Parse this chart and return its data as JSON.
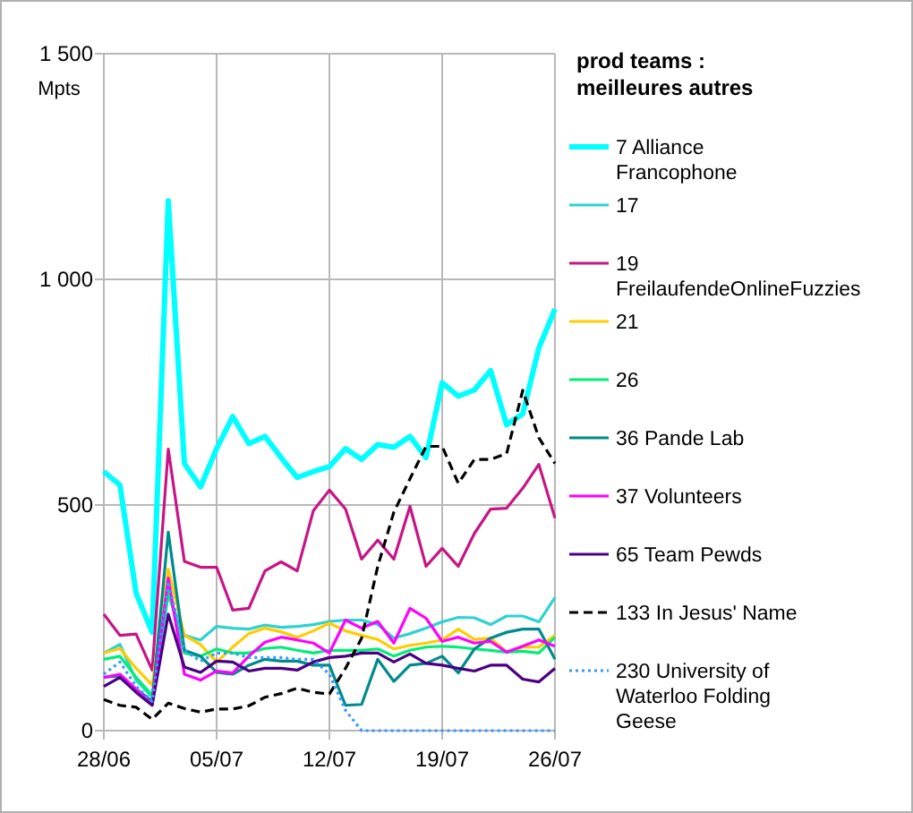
{
  "chart_data": {
    "type": "line",
    "ylabel": "Mpts",
    "legend_title": "prod teams : meilleures autres",
    "legend": "right",
    "grid": true,
    "marker": "none",
    "line_style": "solid",
    "x": [
      "--06-28",
      "--06-29",
      "--06-30",
      "--07-01",
      "--07-02",
      "--07-03",
      "--07-04",
      "--07-05",
      "--07-06",
      "--07-07",
      "--07-08",
      "--07-09",
      "--07-10",
      "--07-11",
      "--07-12",
      "--07-13",
      "--07-14",
      "--07-15",
      "--07-16",
      "--07-17",
      "--07-18",
      "--07-19",
      "--07-20",
      "--07-21",
      "--07-22",
      "--07-23",
      "--07-24",
      "--07-25",
      "--07-26"
    ],
    "xlim": [
      "--06-28",
      "--07-26"
    ],
    "xticks": [
      {
        "value": "--06-28",
        "label": "28/06"
      },
      {
        "value": "--07-05",
        "label": "05/07"
      },
      {
        "value": "--07-12",
        "label": "12/07"
      },
      {
        "value": "--07-19",
        "label": "19/07"
      },
      {
        "value": "--07-26",
        "label": "26/07"
      }
    ],
    "ylim": [
      0,
      1500
    ],
    "yticks": [
      0,
      500,
      {
        "value": 1000,
        "label": "1 000"
      },
      {
        "value": 1500,
        "label": "1 500"
      }
    ],
    "series": [
      {
        "name": "7 Alliance Francophone",
        "color": "#00ffff",
        "values": [
          574,
          544,
          305,
          218,
          1174,
          592,
          540,
          625,
          696,
          636,
          652,
          605,
          561,
          574,
          585,
          625,
          601,
          634,
          628,
          652,
          605,
          771,
          741,
          755,
          798,
          678,
          702,
          848,
          934
        ]
      },
      {
        "name": "17",
        "color": "#2ed2d2",
        "values": [
          172,
          191,
          112,
          74,
          300,
          211,
          201,
          231,
          227,
          225,
          234,
          229,
          231,
          235,
          242,
          245,
          245,
          235,
          205,
          215,
          227,
          241,
          251,
          250,
          235,
          254,
          254,
          241,
          295
        ]
      },
      {
        "name": "19 FreilaufendeOnlineFuzzies",
        "color": "#c71585",
        "values": [
          258,
          211,
          214,
          134,
          624,
          375,
          362,
          362,
          267,
          271,
          354,
          374,
          354,
          487,
          533,
          491,
          380,
          422,
          380,
          497,
          364,
          404,
          364,
          437,
          491,
          493,
          537,
          590,
          471
        ]
      },
      {
        "name": "21",
        "color": "#ffcc00",
        "values": [
          172,
          182,
          138,
          101,
          358,
          211,
          191,
          152,
          185,
          215,
          227,
          219,
          207,
          221,
          238,
          221,
          211,
          202,
          181,
          189,
          194,
          201,
          225,
          202,
          205,
          174,
          185,
          185,
          211
        ]
      },
      {
        "name": "26",
        "color": "#00ee77",
        "values": [
          158,
          165,
          118,
          78,
          311,
          172,
          165,
          181,
          172,
          172,
          182,
          185,
          178,
          172,
          178,
          178,
          178,
          181,
          165,
          178,
          185,
          187,
          185,
          181,
          178,
          174,
          176,
          172,
          207
        ]
      },
      {
        "name": "36 Pande Lab",
        "color": "#008b8b",
        "values": [
          118,
          121,
          92,
          65,
          440,
          178,
          165,
          129,
          125,
          145,
          158,
          154,
          154,
          145,
          145,
          56,
          58,
          158,
          109,
          145,
          149,
          165,
          128,
          181,
          205,
          218,
          225,
          225,
          158
        ]
      },
      {
        "name": "37 Volunteers",
        "color": "#ff00ff",
        "values": [
          118,
          125,
          92,
          58,
          338,
          125,
          112,
          132,
          128,
          165,
          196,
          207,
          201,
          194,
          172,
          245,
          227,
          242,
          194,
          271,
          249,
          198,
          207,
          194,
          198,
          174,
          187,
          201,
          187
        ]
      },
      {
        "name": "65 Team Pewds",
        "color": "#4b0082",
        "values": [
          98,
          118,
          85,
          56,
          258,
          141,
          129,
          154,
          152,
          132,
          138,
          138,
          134,
          152,
          162,
          165,
          172,
          172,
          152,
          170,
          149,
          145,
          138,
          132,
          145,
          145,
          114,
          108,
          138
        ]
      },
      {
        "name": "133 In Jesus' Name",
        "color": "#000000",
        "line_style": "dashed",
        "values": [
          69,
          56,
          52,
          25,
          61,
          49,
          41,
          48,
          48,
          55,
          74,
          82,
          94,
          85,
          81,
          138,
          205,
          364,
          484,
          558,
          630,
          630,
          548,
          601,
          601,
          614,
          754,
          649,
          592
        ]
      },
      {
        "name": "230 University of Waterloo Folding Geese",
        "color": "#3399ff",
        "line_style": "dotted",
        "values": [
          125,
          152,
          98,
          65,
          330,
          178,
          154,
          172,
          172,
          162,
          162,
          162,
          158,
          158,
          125,
          45,
          0,
          0,
          0,
          0,
          0,
          0,
          0,
          0,
          0,
          0,
          0,
          0,
          0
        ]
      }
    ]
  }
}
